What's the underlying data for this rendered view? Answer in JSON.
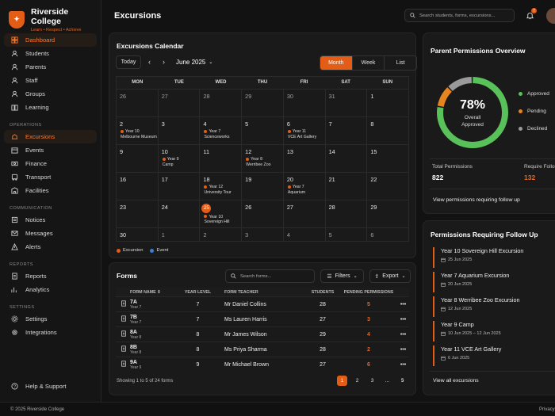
{
  "brand": {
    "name": "Riverside College",
    "tagline": "Learn • Respect • Achieve"
  },
  "nav": {
    "main": [
      {
        "label": "Dashboard",
        "icon": "grid-icon",
        "active": true
      },
      {
        "label": "Students",
        "icon": "students-icon"
      },
      {
        "label": "Parents",
        "icon": "parents-icon"
      },
      {
        "label": "Staff",
        "icon": "staff-icon"
      },
      {
        "label": "Groups",
        "icon": "groups-icon"
      },
      {
        "label": "Learning",
        "icon": "book-icon"
      }
    ],
    "operations_title": "OPERATIONS",
    "operations": [
      {
        "label": "Excursions",
        "icon": "excursions-icon",
        "active": true
      },
      {
        "label": "Events",
        "icon": "calendar-icon"
      },
      {
        "label": "Finance",
        "icon": "finance-icon"
      },
      {
        "label": "Transport",
        "icon": "bus-icon"
      },
      {
        "label": "Facilities",
        "icon": "building-icon"
      }
    ],
    "communication_title": "COMMUNICATION",
    "communication": [
      {
        "label": "Notices",
        "icon": "notice-icon"
      },
      {
        "label": "Messages",
        "icon": "mail-icon"
      },
      {
        "label": "Alerts",
        "icon": "alert-icon"
      }
    ],
    "reports_title": "REPORTS",
    "reports": [
      {
        "label": "Reports",
        "icon": "report-icon"
      },
      {
        "label": "Analytics",
        "icon": "analytics-icon"
      }
    ],
    "settings_title": "SETTINGS",
    "settings": [
      {
        "label": "Settings",
        "icon": "gear-icon"
      },
      {
        "label": "Integrations",
        "icon": "integrations-icon"
      }
    ],
    "help": "Help & Support"
  },
  "header": {
    "title": "Excursions",
    "search_placeholder": "Search students, forms, excursions...",
    "notification_count": "7"
  },
  "calendar": {
    "title": "Excursions Calendar",
    "today_label": "Today",
    "month_label": "June 2025",
    "views": [
      "Month",
      "Week",
      "List"
    ],
    "weekdays": [
      "MON",
      "TUE",
      "WED",
      "THU",
      "FRI",
      "SAT",
      "SUN"
    ],
    "weeks": [
      [
        {
          "d": "26",
          "m": true
        },
        {
          "d": "27",
          "m": true
        },
        {
          "d": "28",
          "m": true
        },
        {
          "d": "29",
          "m": true
        },
        {
          "d": "30",
          "m": true
        },
        {
          "d": "31",
          "m": true
        },
        {
          "d": "1"
        }
      ],
      [
        {
          "d": "2",
          "e": [
            "Year 10",
            "Melbourne Museum"
          ]
        },
        {
          "d": "3"
        },
        {
          "d": "4",
          "e": [
            "Year 7",
            "Scienceworks"
          ]
        },
        {
          "d": "5"
        },
        {
          "d": "6",
          "e": [
            "Year 11",
            "VCE Art Gallery"
          ]
        },
        {
          "d": "7"
        },
        {
          "d": "8"
        }
      ],
      [
        {
          "d": "9"
        },
        {
          "d": "10",
          "e": [
            "Year 9",
            "Camp"
          ]
        },
        {
          "d": "11"
        },
        {
          "d": "12",
          "e": [
            "Year 8",
            "Werribee Zoo"
          ]
        },
        {
          "d": "13"
        },
        {
          "d": "14"
        },
        {
          "d": "15"
        }
      ],
      [
        {
          "d": "16"
        },
        {
          "d": "17"
        },
        {
          "d": "18",
          "e": [
            "Year 12",
            "University Tour"
          ]
        },
        {
          "d": "19"
        },
        {
          "d": "20",
          "e": [
            "Year 7",
            "Aquarium"
          ]
        },
        {
          "d": "21"
        },
        {
          "d": "22"
        }
      ],
      [
        {
          "d": "23"
        },
        {
          "d": "24"
        },
        {
          "d": "25",
          "t": true,
          "e": [
            "Year 10",
            "Sovereign Hill"
          ]
        },
        {
          "d": "26"
        },
        {
          "d": "27"
        },
        {
          "d": "28"
        },
        {
          "d": "29"
        }
      ],
      [
        {
          "d": "30"
        },
        {
          "d": "1",
          "m": true
        },
        {
          "d": "2",
          "m": true
        },
        {
          "d": "3",
          "m": true
        },
        {
          "d": "4",
          "m": true
        },
        {
          "d": "5",
          "m": true
        },
        {
          "d": "6",
          "m": true
        }
      ]
    ],
    "legend": [
      {
        "label": "Excursion",
        "color": "#e35d17"
      },
      {
        "label": "Event",
        "color": "#3d7fd9"
      }
    ]
  },
  "forms": {
    "title": "Forms",
    "search_placeholder": "Search forms...",
    "filters_label": "Filters",
    "export_label": "Export",
    "columns": [
      "FORM NAME",
      "YEAR LEVEL",
      "FORM TEACHER",
      "STUDENTS",
      "PENDING PERMISSIONS"
    ],
    "rows": [
      {
        "name": "7A",
        "year": "Year 7",
        "level": "7",
        "teacher": "Mr Daniel Collins",
        "students": "28",
        "pending": "5"
      },
      {
        "name": "7B",
        "year": "Year 7",
        "level": "7",
        "teacher": "Ms Lauren Harris",
        "students": "27",
        "pending": "3"
      },
      {
        "name": "8A",
        "year": "Year 8",
        "level": "8",
        "teacher": "Mr James Wilson",
        "students": "29",
        "pending": "4"
      },
      {
        "name": "8B",
        "year": "Year 8",
        "level": "8",
        "teacher": "Ms Priya Sharma",
        "students": "28",
        "pending": "2"
      },
      {
        "name": "9A",
        "year": "Year 9",
        "level": "9",
        "teacher": "Mr Michael Brown",
        "students": "27",
        "pending": "6"
      }
    ],
    "footer_text": "Showing 1 to 5 of 24 forms",
    "pages": [
      "1",
      "2",
      "3",
      "...",
      "5"
    ]
  },
  "permissions": {
    "title": "Parent Permissions Overview",
    "percent": "78%",
    "percent_value": 78,
    "caption_line1": "Overall",
    "caption_line2": "Approved",
    "segments": [
      {
        "label": "Approved",
        "value": 78,
        "color": "#59c15a"
      },
      {
        "label": "Pending",
        "value": 10,
        "color": "#e8841e"
      },
      {
        "label": "Declined",
        "value": 12,
        "color": "#9a9a9a"
      }
    ],
    "total_label": "Total Permissions",
    "total_value": "822",
    "require_label": "Require Follo",
    "require_value": "132",
    "link": "View permissions requiring follow up"
  },
  "followup": {
    "title": "Permissions Requiring Follow Up",
    "items": [
      {
        "title": "Year 10 Sovereign Hill Excursion",
        "date": "25 Jun 2025"
      },
      {
        "title": "Year 7 Aquarium Excursion",
        "date": "20 Jun 2025"
      },
      {
        "title": "Year 8 Werribee Zoo Excursion",
        "date": "12 Jun 2025"
      },
      {
        "title": "Year 9 Camp",
        "date": "10 Jun 2025 – 12 Jun 2025"
      },
      {
        "title": "Year 11 VCE Art Gallery",
        "date": "6 Jun 2025"
      }
    ],
    "link": "View all excursions"
  },
  "footer": {
    "copyright": "© 2025 Riverside College",
    "privacy": "Privacy"
  }
}
